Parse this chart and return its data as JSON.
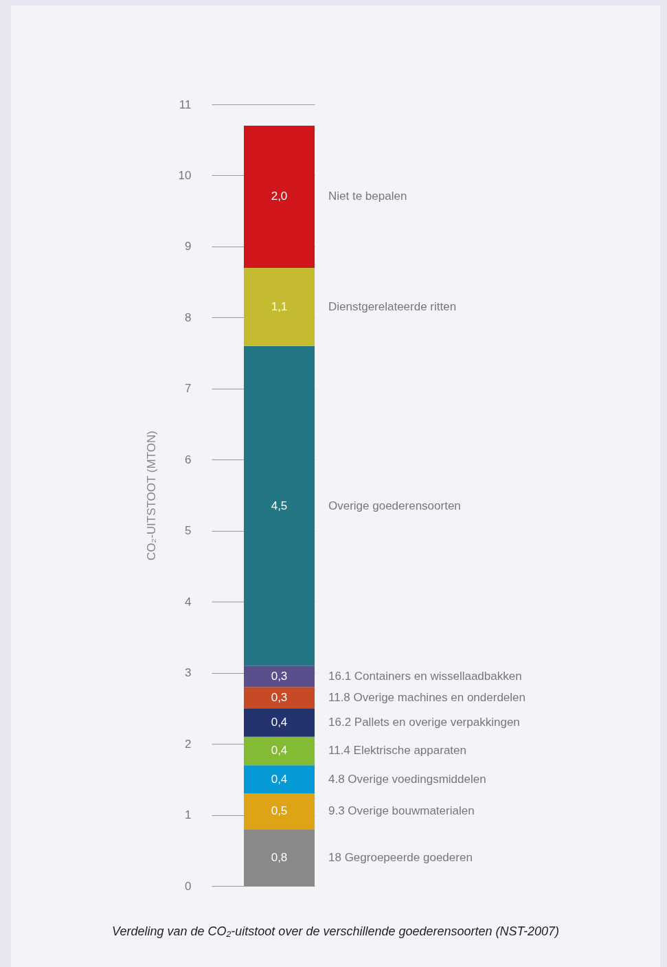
{
  "chart_data": {
    "type": "bar",
    "stacked": true,
    "categories": [
      null
    ],
    "ylabel": "CO₂-UITSTOOT (MTON)",
    "annotations": [
      "Verdeling van de CO₂-uitstoot over de verschillende goederensoorten (NST-2007)"
    ],
    "ylim": [
      0,
      11
    ],
    "yticks": [
      0,
      1,
      2,
      3,
      4,
      5,
      6,
      7,
      8,
      9,
      10,
      11
    ],
    "grid": "y",
    "tick_labels": "y",
    "series": [
      {
        "name": "18 Gegroepeerde goederen",
        "color": "#898989",
        "values": [
          0.8
        ],
        "value_labels": [
          "0,8"
        ]
      },
      {
        "name": "9.3 Overige bouwmaterialen",
        "color": "#dea416",
        "values": [
          0.5
        ],
        "value_labels": [
          "0,5"
        ]
      },
      {
        "name": "4.8 Overige voedingsmiddelen",
        "color": "#0599d5",
        "values": [
          0.4
        ],
        "value_labels": [
          "0,4"
        ]
      },
      {
        "name": "11.4 Elektrische apparaten",
        "color": "#84bb35",
        "values": [
          0.4
        ],
        "value_labels": [
          "0,4"
        ]
      },
      {
        "name": "16.2 Pallets en overige verpakkingen",
        "color": "#24326d",
        "values": [
          0.4
        ],
        "value_labels": [
          "0,4"
        ]
      },
      {
        "name": "11.8 Overige machines en onderdelen",
        "color": "#c64a26",
        "values": [
          0.3
        ],
        "value_labels": [
          "0,3"
        ]
      },
      {
        "name": "16.1 Containers en wissellaadbakken",
        "color": "#5b4e8c",
        "values": [
          0.3
        ],
        "value_labels": [
          "0,3"
        ]
      },
      {
        "name": "Overige goederensoorten",
        "color": "#237784",
        "values": [
          4.5
        ],
        "value_labels": [
          "4,5"
        ]
      },
      {
        "name": "Dienstgerelateerde ritten",
        "color": "#c4bb30",
        "values": [
          1.1
        ],
        "value_labels": [
          "1,1"
        ]
      },
      {
        "name": "Niet te bepalen",
        "color": "#d0161b",
        "values": [
          2.0
        ],
        "value_labels": [
          "2,0"
        ]
      }
    ]
  }
}
